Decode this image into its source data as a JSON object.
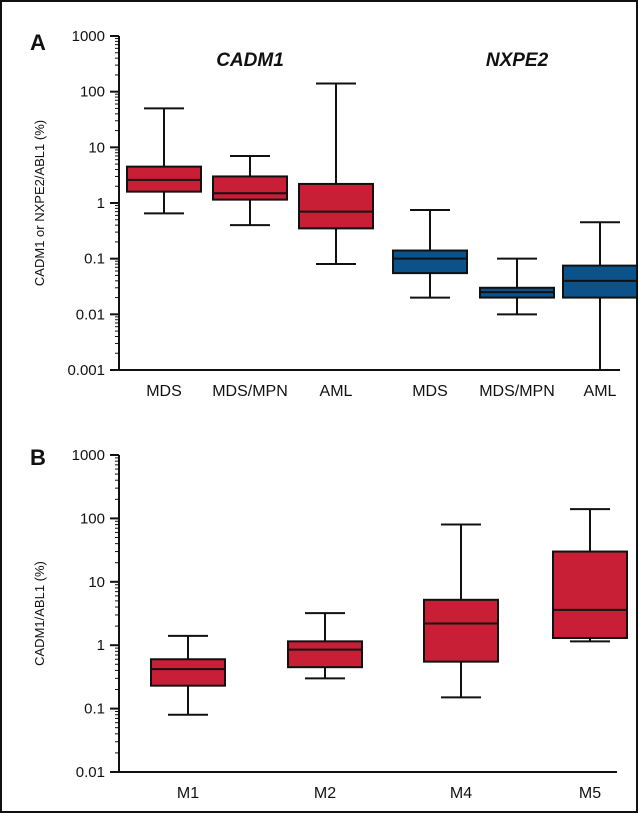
{
  "chart_data": [
    {
      "type": "box",
      "panel": "A",
      "ylabel": "CADM1 or NXPE2/ABL1 (%)",
      "yscale": "log",
      "ylim": [
        0.001,
        1000
      ],
      "yticks": [
        "0.001",
        "0.01",
        "0.1",
        "1",
        "10",
        "100",
        "1000"
      ],
      "groups": [
        {
          "name": "CADM1",
          "color": "#c81e36"
        },
        {
          "name": "NXPE2",
          "color": "#0a5289"
        }
      ],
      "categories": [
        "MDS",
        "MDS/MPN",
        "AML",
        "MDS",
        "MDS/MPN",
        "AML"
      ],
      "series": [
        {
          "group": "CADM1",
          "category": "MDS",
          "min": 0.65,
          "q1": 1.6,
          "median": 2.6,
          "q3": 4.5,
          "max": 50
        },
        {
          "group": "CADM1",
          "category": "MDS/MPN",
          "min": 0.4,
          "q1": 1.15,
          "median": 1.5,
          "q3": 3.0,
          "max": 7.0
        },
        {
          "group": "CADM1",
          "category": "AML",
          "min": 0.08,
          "q1": 0.35,
          "median": 0.7,
          "q3": 2.2,
          "max": 140
        },
        {
          "group": "NXPE2",
          "category": "MDS",
          "min": 0.02,
          "q1": 0.055,
          "median": 0.1,
          "q3": 0.14,
          "max": 0.75
        },
        {
          "group": "NXPE2",
          "category": "MDS/MPN",
          "min": 0.01,
          "q1": 0.02,
          "median": 0.025,
          "q3": 0.03,
          "max": 0.1
        },
        {
          "group": "NXPE2",
          "category": "AML",
          "min": 0.001,
          "q1": 0.02,
          "median": 0.04,
          "q3": 0.075,
          "max": 0.45
        }
      ]
    },
    {
      "type": "box",
      "panel": "B",
      "ylabel": "CADM1/ABL1 (%)",
      "yscale": "log",
      "ylim": [
        0.01,
        1000
      ],
      "yticks": [
        "0.01",
        "0.1",
        "1",
        "10",
        "100",
        "1000"
      ],
      "color": "#c81e36",
      "categories": [
        "M1",
        "M2",
        "M4",
        "M5"
      ],
      "series": [
        {
          "category": "M1",
          "min": 0.08,
          "q1": 0.23,
          "median": 0.42,
          "q3": 0.6,
          "max": 1.4
        },
        {
          "category": "M2",
          "min": 0.3,
          "q1": 0.45,
          "median": 0.85,
          "q3": 1.15,
          "max": 3.2
        },
        {
          "category": "M4",
          "min": 0.15,
          "q1": 0.55,
          "median": 2.2,
          "q3": 5.2,
          "max": 80
        },
        {
          "category": "M5",
          "min": 1.15,
          "q1": 1.3,
          "median": 3.6,
          "q3": 30,
          "max": 140
        }
      ]
    }
  ]
}
